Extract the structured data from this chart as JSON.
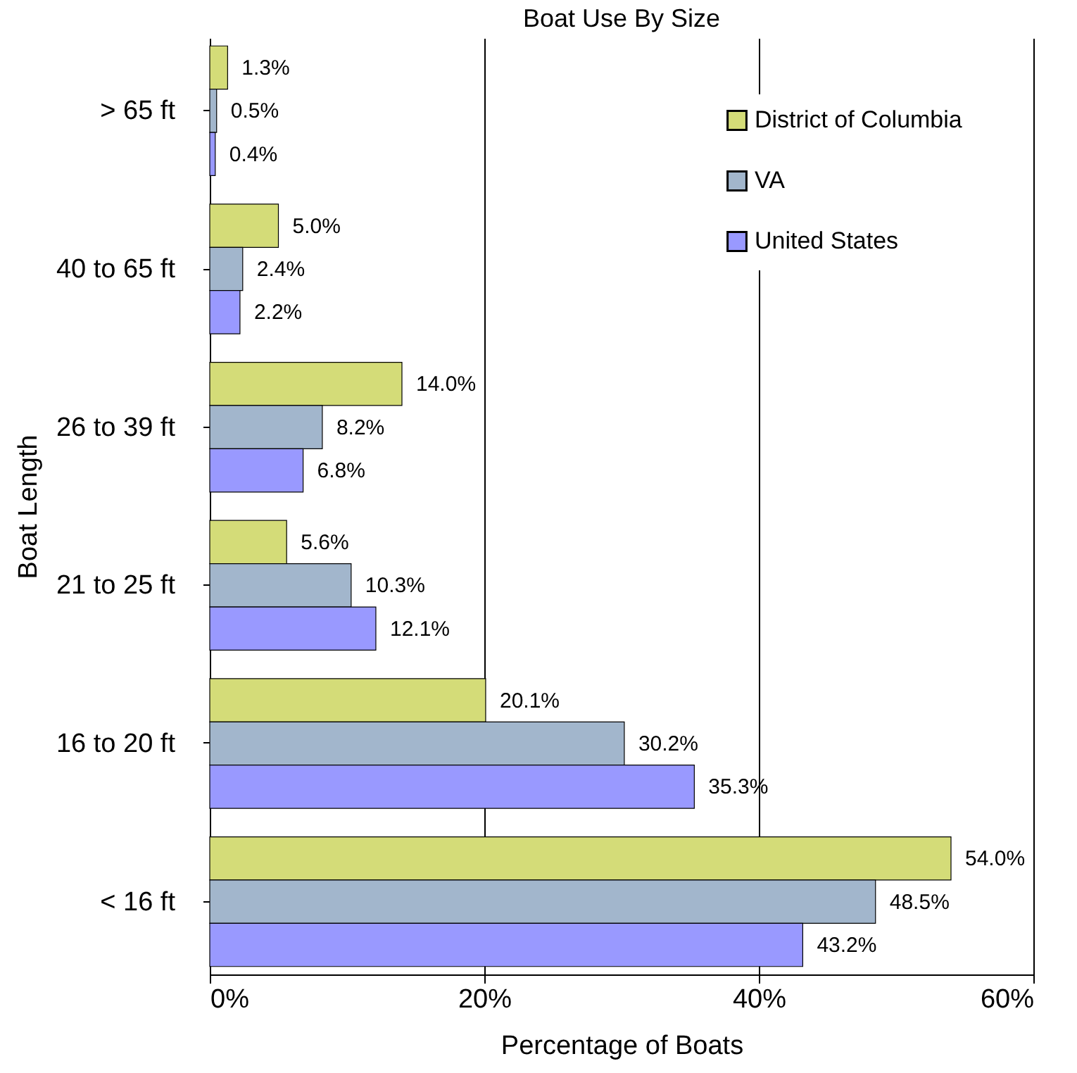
{
  "chart_data": {
    "type": "bar",
    "orientation": "horizontal",
    "title": "Boat Use By Size",
    "xlabel": "Percentage of Boats",
    "ylabel": "Boat Length",
    "categories": [
      "> 65 ft",
      "40 to 65 ft",
      "26 to 39 ft",
      "21 to 25 ft",
      "16 to 20 ft",
      "< 16 ft"
    ],
    "series": [
      {
        "name": "District of Columbia",
        "color": "#d4dc78",
        "values": [
          1.3,
          5.0,
          14.0,
          5.6,
          20.1,
          54.0
        ],
        "value_labels": [
          "1.3%",
          "5.0%",
          "14.0%",
          "5.6%",
          "20.1%",
          "54.0%"
        ]
      },
      {
        "name": "VA",
        "color": "#a2b6cc",
        "values": [
          0.5,
          2.4,
          8.2,
          10.3,
          30.2,
          48.5
        ],
        "value_labels": [
          "0.5%",
          "2.4%",
          "8.2%",
          "10.3%",
          "30.2%",
          "48.5%"
        ]
      },
      {
        "name": "United States",
        "color": "#9999ff",
        "values": [
          0.4,
          2.2,
          6.8,
          12.1,
          35.3,
          43.2
        ],
        "value_labels": [
          "0.4%",
          "2.2%",
          "6.8%",
          "12.1%",
          "35.3%",
          "43.2%"
        ]
      }
    ],
    "xlim": [
      0,
      60
    ],
    "xticks": [
      {
        "value": 0,
        "label": "0%"
      },
      {
        "value": 20,
        "label": "20%"
      },
      {
        "value": 40,
        "label": "40%"
      },
      {
        "value": 60,
        "label": "60%"
      }
    ],
    "grid": "x",
    "legend": "top right"
  }
}
